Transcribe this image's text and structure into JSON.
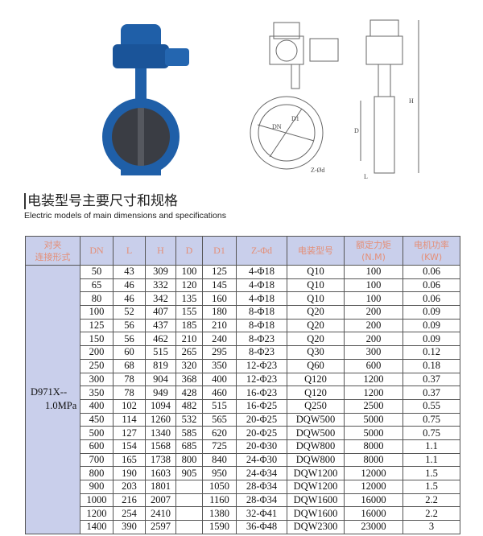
{
  "title": "电装型号主要尺寸和规格",
  "subtitle": "Electric models of main dimensions and specifications",
  "drawing_labels": {
    "dn": "DN",
    "d1": "D1",
    "zd": "Z-Ød",
    "h": "H",
    "d": "D",
    "l": "L"
  },
  "colors": {
    "header_bg": "#c9cfeb",
    "header_text": "#e48f78",
    "valve_blue": "#1f5fa8"
  },
  "table": {
    "headers": [
      [
        "对夹",
        "连接形式"
      ],
      "DN",
      "L",
      "H",
      "D",
      "D1",
      "Z-Φd",
      "电装型号",
      [
        "额定力矩",
        "(N.M)"
      ],
      [
        "电机功率",
        "(KW)"
      ]
    ],
    "type_label": [
      "D971X--",
      "1.0MPa"
    ],
    "rows": [
      [
        "50",
        "43",
        "309",
        "100",
        "125",
        "4-Φ18",
        "Q10",
        "100",
        "0.06"
      ],
      [
        "65",
        "46",
        "332",
        "120",
        "145",
        "4-Φ18",
        "Q10",
        "100",
        "0.06"
      ],
      [
        "80",
        "46",
        "342",
        "135",
        "160",
        "4-Φ18",
        "Q10",
        "100",
        "0.06"
      ],
      [
        "100",
        "52",
        "407",
        "155",
        "180",
        "8-Φ18",
        "Q20",
        "200",
        "0.09"
      ],
      [
        "125",
        "56",
        "437",
        "185",
        "210",
        "8-Φ18",
        "Q20",
        "200",
        "0.09"
      ],
      [
        "150",
        "56",
        "462",
        "210",
        "240",
        "8-Φ23",
        "Q20",
        "200",
        "0.09"
      ],
      [
        "200",
        "60",
        "515",
        "265",
        "295",
        "8-Φ23",
        "Q30",
        "300",
        "0.12"
      ],
      [
        "250",
        "68",
        "819",
        "320",
        "350",
        "12-Φ23",
        "Q60",
        "600",
        "0.18"
      ],
      [
        "300",
        "78",
        "904",
        "368",
        "400",
        "12-Φ23",
        "Q120",
        "1200",
        "0.37"
      ],
      [
        "350",
        "78",
        "949",
        "428",
        "460",
        "16-Φ23",
        "Q120",
        "1200",
        "0.37"
      ],
      [
        "400",
        "102",
        "1094",
        "482",
        "515",
        "16-Φ25",
        "Q250",
        "2500",
        "0.55"
      ],
      [
        "450",
        "114",
        "1260",
        "532",
        "565",
        "20-Φ25",
        "DQW500",
        "5000",
        "0.75"
      ],
      [
        "500",
        "127",
        "1340",
        "585",
        "620",
        "20-Φ25",
        "DQW500",
        "5000",
        "0.75"
      ],
      [
        "600",
        "154",
        "1568",
        "685",
        "725",
        "20-Φ30",
        "DQW800",
        "8000",
        "1.1"
      ],
      [
        "700",
        "165",
        "1738",
        "800",
        "840",
        "24-Φ30",
        "DQW800",
        "8000",
        "1.1"
      ],
      [
        "800",
        "190",
        "1603",
        "905",
        "950",
        "24-Φ34",
        "DQW1200",
        "12000",
        "1.5"
      ],
      [
        "900",
        "203",
        "1801",
        "",
        "1050",
        "28-Φ34",
        "DQW1200",
        "12000",
        "1.5"
      ],
      [
        "1000",
        "216",
        "2007",
        "",
        "1160",
        "28-Φ34",
        "DQW1600",
        "16000",
        "2.2"
      ],
      [
        "1200",
        "254",
        "2410",
        "",
        "1380",
        "32-Φ41",
        "DQW1600",
        "16000",
        "2.2"
      ],
      [
        "1400",
        "390",
        "2597",
        "",
        "1590",
        "36-Φ48",
        "DQW2300",
        "23000",
        "3"
      ]
    ]
  }
}
